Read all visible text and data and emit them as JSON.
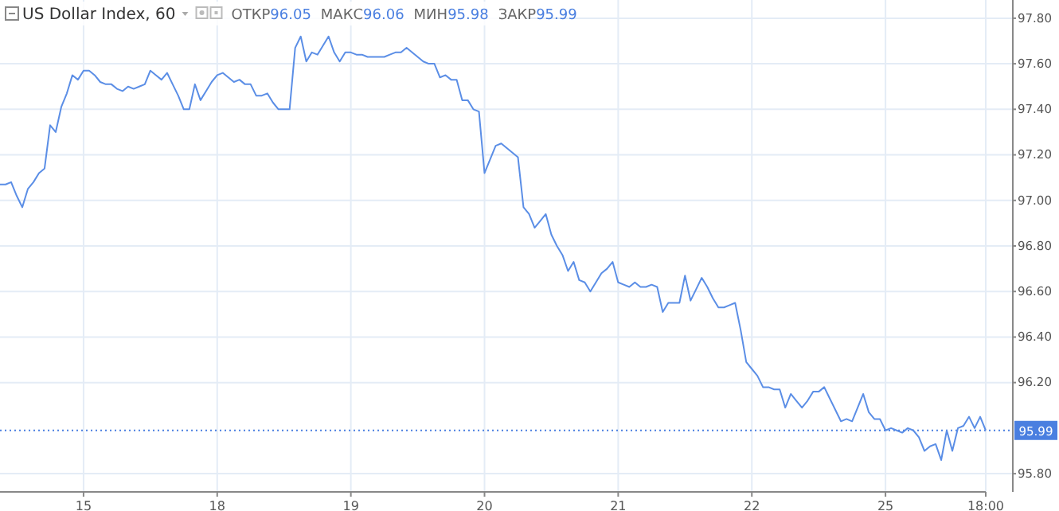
{
  "chart_data": {
    "type": "line",
    "title": "US Dollar Index, 60",
    "annotations": [
      "ОТКР96.05",
      "МАКС96.06",
      "МИН95.98",
      "ЗАКР95.99"
    ],
    "categories": [
      null,
      null,
      null,
      null,
      null,
      null,
      null,
      null,
      null,
      null,
      null,
      null,
      null,
      null,
      null,
      "15",
      null,
      null,
      null,
      null,
      null,
      null,
      null,
      null,
      null,
      null,
      null,
      null,
      null,
      null,
      null,
      null,
      null,
      null,
      null,
      null,
      null,
      null,
      null,
      "18",
      null,
      null,
      null,
      null,
      null,
      null,
      null,
      null,
      null,
      null,
      null,
      null,
      null,
      null,
      null,
      null,
      null,
      null,
      null,
      null,
      null,
      null,
      null,
      "19",
      null,
      null,
      null,
      null,
      null,
      null,
      null,
      null,
      null,
      null,
      null,
      null,
      null,
      null,
      null,
      null,
      null,
      null,
      null,
      null,
      null,
      null,
      null,
      "20",
      null,
      null,
      null,
      null,
      null,
      null,
      null,
      null,
      null,
      null,
      null,
      null,
      null,
      null,
      null,
      null,
      null,
      null,
      null,
      null,
      null,
      null,
      null,
      "21",
      null,
      null,
      null,
      null,
      null,
      null,
      null,
      null,
      null,
      null,
      null,
      null,
      null,
      null,
      null,
      null,
      null,
      null,
      null,
      null,
      null,
      null,
      null,
      "22",
      null,
      null,
      null,
      null,
      null,
      null,
      null,
      null,
      null,
      null,
      null,
      null,
      null,
      null,
      null,
      null,
      null,
      null,
      null,
      null,
      null,
      null,
      null,
      "25",
      null,
      null,
      null,
      null,
      null,
      null,
      null,
      null,
      null,
      null,
      null,
      null,
      null,
      null,
      null,
      null,
      null,
      "18:00"
    ],
    "series": [
      {
        "color": "#5b8ee6",
        "values": [
          97.07,
          97.07,
          97.08,
          97.02,
          96.97,
          97.05,
          97.08,
          97.12,
          97.14,
          97.33,
          97.3,
          97.41,
          97.47,
          97.55,
          97.53,
          97.57,
          97.57,
          97.55,
          97.52,
          97.51,
          97.51,
          97.49,
          97.48,
          97.5,
          97.49,
          97.5,
          97.51,
          97.57,
          97.55,
          97.53,
          97.56,
          97.51,
          97.46,
          97.4,
          97.4,
          97.51,
          97.44,
          97.48,
          97.52,
          97.55,
          97.56,
          97.54,
          97.52,
          97.53,
          97.51,
          97.51,
          97.46,
          97.46,
          97.47,
          97.43,
          97.4,
          97.4,
          97.4,
          97.67,
          97.72,
          97.61,
          97.65,
          97.64,
          97.68,
          97.72,
          97.65,
          97.61,
          97.65,
          97.65,
          97.64,
          97.64,
          97.63,
          97.63,
          97.63,
          97.63,
          97.64,
          97.65,
          97.65,
          97.67,
          97.65,
          97.63,
          97.61,
          97.6,
          97.6,
          97.54,
          97.55,
          97.53,
          97.53,
          97.44,
          97.44,
          97.4,
          97.39,
          97.12,
          97.18,
          97.24,
          97.25,
          97.23,
          97.21,
          97.19,
          96.97,
          96.94,
          96.88,
          96.91,
          96.94,
          96.85,
          96.8,
          96.76,
          96.69,
          96.73,
          96.65,
          96.64,
          96.6,
          96.64,
          96.68,
          96.7,
          96.73,
          96.64,
          96.63,
          96.62,
          96.64,
          96.62,
          96.62,
          96.63,
          96.62,
          96.51,
          96.55,
          96.55,
          96.55,
          96.67,
          96.56,
          96.61,
          96.66,
          96.62,
          96.57,
          96.53,
          96.53,
          96.54,
          96.55,
          96.43,
          96.29,
          96.26,
          96.23,
          96.18,
          96.18,
          96.17,
          96.17,
          96.09,
          96.15,
          96.12,
          96.09,
          96.12,
          96.16,
          96.16,
          96.18,
          96.13,
          96.08,
          96.03,
          96.04,
          96.03,
          96.09,
          96.15,
          96.07,
          96.04,
          96.04,
          95.99,
          96.0,
          95.99,
          95.98,
          96.0,
          95.99,
          95.96,
          95.9,
          95.92,
          95.93,
          95.86,
          95.99,
          95.9,
          96.0,
          96.01,
          96.05,
          96.0,
          96.05,
          95.99
        ]
      }
    ],
    "ylim": [
      95.72,
      97.88
    ],
    "yticks": [
      {
        "value": 95.8,
        "label": "95.80"
      },
      {
        "value": 96.2,
        "label": "96.20"
      },
      {
        "value": 96.4,
        "label": "96.40"
      },
      {
        "value": 96.6,
        "label": "96.60"
      },
      {
        "value": 96.8,
        "label": "96.80"
      },
      {
        "value": 97,
        "label": "97.00"
      },
      {
        "value": 97.2,
        "label": "97.20"
      },
      {
        "value": 97.4,
        "label": "97.40"
      },
      {
        "value": 97.6,
        "label": "97.60"
      },
      {
        "value": 97.8,
        "label": "97.80"
      }
    ],
    "ref_lines": [
      {
        "axis": "y",
        "value": 95.99,
        "label": "95.99",
        "color": "#4a7fe0",
        "line_style": "dotted"
      }
    ],
    "grid": true,
    "marker": "none",
    "line_style": "solid"
  }
}
